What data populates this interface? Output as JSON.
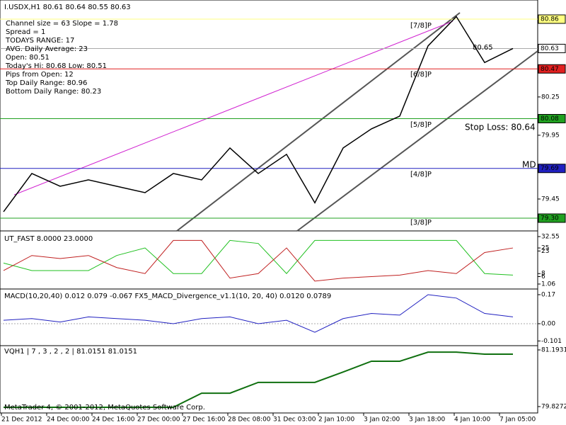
{
  "header": {
    "symbol": "I.USDX,H1  80.61 80.64 80.55 80.63",
    "info": [
      "Channel size = 63 Slope = 1.78",
      "Spread = 1",
      "TODAYS RANGE: 17",
      "AVG. Daily Average: 23",
      "Open: 80.51",
      "Today's Hi: 80.68  Low: 80.51",
      "Pips from Open: 12",
      "Top Daily Range: 80.96",
      "Bottom Daily Range: 80.23"
    ]
  },
  "main": {
    "ylim": [
      79.2,
      81.01
    ],
    "yticks": [
      80.25,
      79.95,
      79.45
    ],
    "levels": [
      {
        "label": "80.86",
        "color": "#ffff80"
      },
      {
        "label": "80.63",
        "color": "#ffffff"
      },
      {
        "label": "80.47",
        "color": "#e02020"
      },
      {
        "label": "80.08",
        "color": "#20a020"
      },
      {
        "label": "79.69",
        "color": "#2020c0"
      },
      {
        "label": "79.30",
        "color": "#20a020"
      }
    ],
    "price": [
      79.35,
      79.65,
      79.55,
      79.6,
      79.55,
      79.5,
      79.65,
      79.6,
      79.85,
      79.65,
      79.8,
      79.42,
      79.85,
      80.0,
      80.1,
      80.65,
      80.88,
      80.52,
      80.63
    ],
    "annotations": [
      "[7/8]P",
      "[6/8]P",
      "[5/8]P",
      "[4/8]P",
      "[3/8]P",
      "80.65",
      "Stop Loss: 80.64",
      "MD"
    ]
  },
  "ut_fast": {
    "title": "UT_FAST 8.0000 23.0000",
    "ylim": [
      -1.76,
      35.84
    ],
    "yticks": [
      32.55,
      25,
      23,
      8,
      6,
      {
        "value": 1.06,
        "label": "1.06"
      }
    ],
    "series": [
      {
        "color": "#20c020",
        "values": [
          15,
          10,
          10,
          10,
          20,
          25,
          8,
          8,
          30,
          28,
          8,
          30,
          30,
          30,
          30,
          30,
          30,
          8,
          7
        ]
      },
      {
        "color": "#c02020",
        "values": [
          10,
          20,
          18,
          20,
          12,
          8,
          30,
          30,
          5,
          8,
          25,
          3,
          5,
          6,
          7,
          10,
          8,
          22,
          25
        ]
      }
    ]
  },
  "macd": {
    "title": "MACD(10,20,40) 0.012 0.079 -0.067  FX5_MACD_Divergence_v1.1(10, 20, 40) 0.0120 0.0789",
    "ylim": [
      -0.1245,
      0.199
    ],
    "yticks": [
      0.17,
      {
        "value": 0,
        "label": "0.00"
      },
      -0.101
    ],
    "values": [
      0.02,
      0.03,
      0.01,
      0.04,
      0.03,
      0.02,
      0,
      0.03,
      0.04,
      0,
      0.02,
      -0.05,
      0.03,
      0.06,
      0.05,
      0.17,
      0.15,
      0.06,
      0.04
    ]
  },
  "vqh": {
    "title": "VQH1 | 7 , 3 , 2 , 2 | 81.0151 81.0151",
    "ylim": [
      79.6735,
      81.2785
    ],
    "yticks": [
      81.1931,
      79.8272
    ],
    "values": [
      79.81,
      79.81,
      79.81,
      79.81,
      79.81,
      79.81,
      79.81,
      80.15,
      80.15,
      80.41,
      80.41,
      80.41,
      80.66,
      80.92,
      80.92,
      81.14,
      81.14,
      81.09,
      81.09
    ]
  },
  "footer": "MetaTrader 4, © 2001-2012, MetaQuotes Software Corp.",
  "dates": [
    "21 Dec 2012",
    "24 Dec 00:00",
    "24 Dec 16:00",
    "27 Dec 00:00",
    "27 Dec 16:00",
    "28 Dec 08:00",
    "31 Dec 03:00",
    "2 Jan 10:00",
    "3 Jan 02:00",
    "3 Jan 18:00",
    "4 Jan 10:00",
    "7 Jan 05:00"
  ]
}
